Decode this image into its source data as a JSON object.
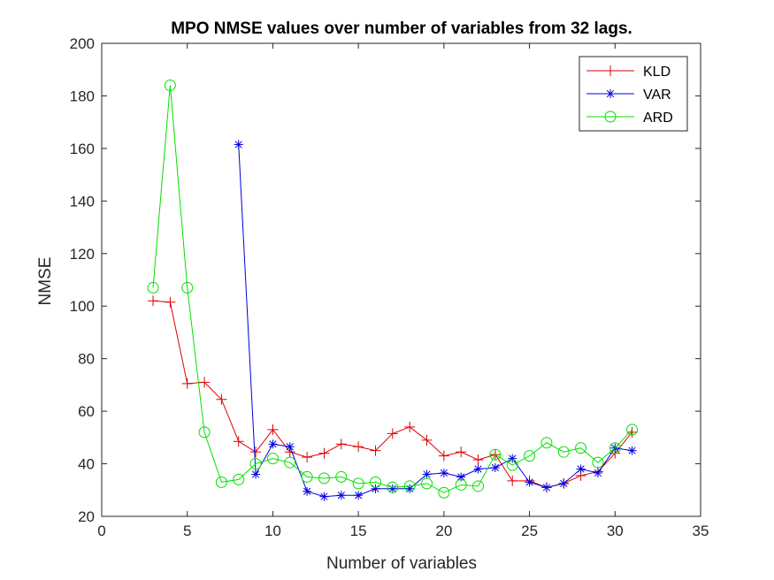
{
  "chart_data": {
    "type": "line",
    "title": "MPO NMSE values over number of variables from 32 lags.",
    "xlabel": "Number of variables",
    "ylabel": "NMSE",
    "xlim": [
      0,
      35
    ],
    "ylim": [
      20,
      200
    ],
    "xticks": [
      0,
      5,
      10,
      15,
      20,
      25,
      30,
      35
    ],
    "yticks": [
      20,
      40,
      60,
      80,
      100,
      120,
      140,
      160,
      180,
      200
    ],
    "grid": false,
    "legend_position": "top-right",
    "series": [
      {
        "name": "KLD",
        "color": "#e00000",
        "marker": "plus",
        "x": [
          3,
          4,
          5,
          6,
          7,
          8,
          9,
          10,
          11,
          12,
          13,
          14,
          15,
          16,
          17,
          18,
          19,
          20,
          21,
          22,
          23,
          24,
          25,
          26,
          27,
          28,
          29,
          30,
          31
        ],
        "y": [
          102,
          101.5,
          70.5,
          71,
          64.5,
          48.5,
          44.5,
          53,
          44.5,
          42.5,
          44,
          47.5,
          46.5,
          45,
          51.5,
          54,
          49,
          43,
          44.5,
          41.5,
          43.5,
          33.5,
          33.5,
          31,
          32.5,
          35.5,
          37,
          44,
          52
        ]
      },
      {
        "name": "VAR",
        "color": "#0000e0",
        "marker": "asterisk",
        "x": [
          8,
          9,
          10,
          11,
          12,
          13,
          14,
          15,
          16,
          17,
          18,
          19,
          20,
          21,
          22,
          23,
          24,
          25,
          26,
          27,
          28,
          29,
          30,
          31
        ],
        "y": [
          161.5,
          36,
          47.5,
          46.5,
          29.5,
          27.5,
          28,
          28,
          30.5,
          30.5,
          30.5,
          36,
          36.5,
          35,
          38,
          38.5,
          42,
          33,
          31,
          32.5,
          38,
          36.5,
          46,
          45
        ]
      },
      {
        "name": "ARD",
        "color": "#00e000",
        "marker": "circle",
        "x": [
          3,
          4,
          5,
          6,
          7,
          8,
          9,
          10,
          11,
          12,
          13,
          14,
          15,
          16,
          17,
          18,
          19,
          20,
          21,
          22,
          23,
          24,
          25,
          26,
          27,
          28,
          29,
          30,
          31
        ],
        "y": [
          107,
          184,
          107,
          52,
          33,
          34,
          40,
          42,
          40.5,
          35,
          34.5,
          35,
          32.5,
          33,
          31,
          31.5,
          32.5,
          29,
          32,
          31.5,
          43.5,
          39.5,
          43,
          48,
          44.5,
          46,
          40.5,
          46,
          53
        ]
      }
    ]
  }
}
